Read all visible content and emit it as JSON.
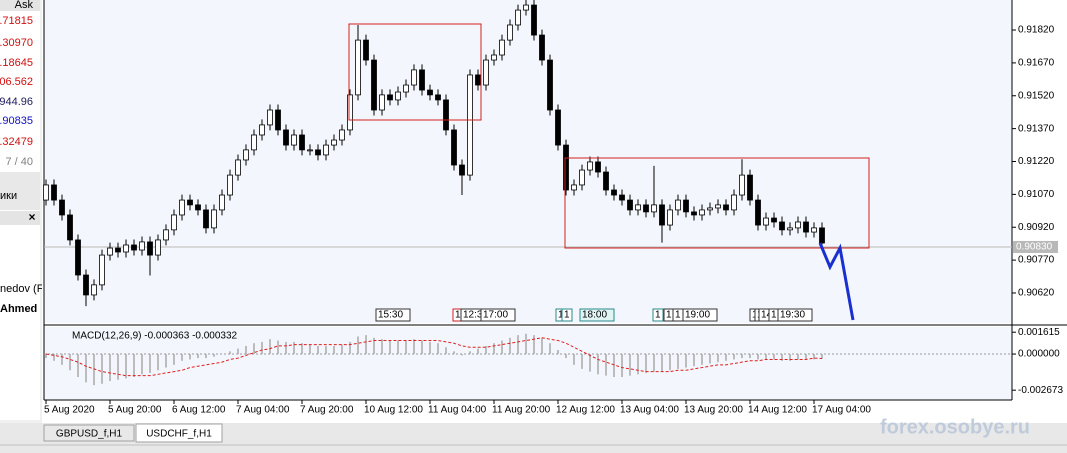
{
  "market_watch": {
    "header": "Ask",
    "prices": [
      ".71815",
      ".30970",
      ".18645",
      "06.562",
      "944.96",
      ".90835",
      ".32479"
    ],
    "counter": "7 / 40",
    "tab": "ики"
  },
  "navigator": {
    "items": [
      "nedov (F",
      "Ahmed"
    ]
  },
  "chart_data": [
    {
      "type": "candlestick",
      "categories": [
        "5 Aug 2020",
        null,
        null,
        null,
        null,
        null,
        null,
        null,
        "5 Aug 20:00",
        null,
        null,
        null,
        null,
        null,
        null,
        null,
        "6 Aug 12:00",
        null,
        null,
        null,
        null,
        null,
        null,
        null,
        "7 Aug 04:00",
        null,
        null,
        null,
        null,
        null,
        null,
        null,
        "7 Aug 20:00",
        null,
        null,
        null,
        null,
        null,
        null,
        null,
        "10 Aug 12:00",
        null,
        null,
        null,
        null,
        null,
        null,
        null,
        "11 Aug 04:00",
        null,
        null,
        null,
        null,
        null,
        null,
        null,
        "11 Aug 20:00",
        null,
        null,
        null,
        null,
        null,
        null,
        null,
        "12 Aug 12:00",
        null,
        null,
        null,
        null,
        null,
        null,
        null,
        "13 Aug 04:00",
        null,
        null,
        null,
        null,
        null,
        null,
        null,
        "13 Aug 20:00",
        null,
        null,
        null,
        null,
        null,
        null,
        null,
        "14 Aug 12:00",
        null,
        null,
        null,
        null,
        null,
        null,
        null,
        "17 Aug 04:00",
        null
      ],
      "open": [
        0.91044,
        0.91113,
        0.91044,
        0.90976,
        0.90862,
        0.90702,
        0.90611,
        0.90657,
        0.90793,
        0.90825,
        0.90807,
        0.90839,
        0.90816,
        0.90853,
        0.90793,
        0.90862,
        0.90908,
        0.90976,
        0.91044,
        0.91022,
        0.90999,
        0.90917,
        0.90999,
        0.91067,
        0.91158,
        0.91227,
        0.91273,
        0.91341,
        0.91387,
        0.91455,
        0.91364,
        0.91295,
        0.91341,
        0.91273,
        0.91273,
        0.9125,
        0.91295,
        0.91318,
        0.91364,
        0.91524,
        0.91774,
        0.91683,
        0.91455,
        0.91524,
        0.91501,
        0.91537,
        0.91569,
        0.91638,
        0.91546,
        0.91524,
        0.91501,
        0.91364,
        0.91204,
        0.91158,
        0.91615,
        0.91569,
        0.91683,
        0.91706,
        0.91774,
        0.91843,
        0.91911,
        0.91934,
        0.91797,
        0.91683,
        0.91455,
        0.91295,
        0.9109,
        0.91113,
        0.91181,
        0.91218,
        0.91172,
        0.9109,
        0.91067,
        0.91044,
        0.90999,
        0.91022,
        0.9099,
        0.91022,
        0.9093,
        0.90999,
        0.91044,
        0.9099,
        0.90976,
        0.90999,
        0.91008,
        0.91022,
        0.90999,
        0.91067,
        0.91158,
        0.91044,
        0.9093,
        0.90962,
        0.90944,
        0.90908,
        0.90917,
        0.90944,
        0.90898,
        0.90917
      ],
      "high": [
        0.91138,
        0.91138,
        0.91069,
        0.91001,
        0.90887,
        0.90727,
        0.90682,
        0.90818,
        0.9085,
        0.9085,
        0.90864,
        0.90864,
        0.90878,
        0.90878,
        0.90887,
        0.90933,
        0.91001,
        0.91069,
        0.91069,
        0.91047,
        0.91024,
        0.91024,
        0.91092,
        0.91183,
        0.91252,
        0.91298,
        0.91366,
        0.91412,
        0.9148,
        0.9148,
        0.91389,
        0.91366,
        0.91366,
        0.91298,
        0.91298,
        0.9132,
        0.91343,
        0.91389,
        0.91549,
        0.91843,
        0.91799,
        0.91708,
        0.91549,
        0.91549,
        0.91562,
        0.91594,
        0.91663,
        0.91663,
        0.91571,
        0.91549,
        0.91526,
        0.91389,
        0.91229,
        0.9164,
        0.9164,
        0.91708,
        0.91731,
        0.91799,
        0.91868,
        0.91936,
        0.91957,
        0.91957,
        0.91822,
        0.91708,
        0.9148,
        0.9132,
        0.91138,
        0.91206,
        0.91243,
        0.91243,
        0.91197,
        0.91115,
        0.91092,
        0.91069,
        0.91047,
        0.91047,
        0.912,
        0.91047,
        0.91024,
        0.91069,
        0.91069,
        0.91015,
        0.91024,
        0.91033,
        0.91047,
        0.91047,
        0.91092,
        0.9123,
        0.91183,
        0.91069,
        0.90987,
        0.90987,
        0.90969,
        0.90942,
        0.90969,
        0.90969,
        0.90942,
        0.90942
      ],
      "low": [
        0.91019,
        0.91019,
        0.90951,
        0.90837,
        0.90677,
        0.9056,
        0.90586,
        0.90632,
        0.90768,
        0.90782,
        0.90782,
        0.90791,
        0.90791,
        0.907,
        0.90768,
        0.90837,
        0.90883,
        0.90951,
        0.90997,
        0.90974,
        0.90892,
        0.90892,
        0.90974,
        0.91042,
        0.91133,
        0.91202,
        0.91248,
        0.91316,
        0.91362,
        0.91339,
        0.9127,
        0.9127,
        0.91248,
        0.91248,
        0.91225,
        0.91225,
        0.9127,
        0.91293,
        0.91339,
        0.91499,
        0.91658,
        0.9143,
        0.9143,
        0.91476,
        0.91476,
        0.91512,
        0.91544,
        0.91521,
        0.91499,
        0.91476,
        0.91339,
        0.91179,
        0.91067,
        0.91133,
        0.91544,
        0.91544,
        0.91658,
        0.91681,
        0.91749,
        0.91818,
        0.91886,
        0.91772,
        0.91658,
        0.9143,
        0.9127,
        0.91065,
        0.91065,
        0.91088,
        0.91156,
        0.91147,
        0.91065,
        0.91042,
        0.91019,
        0.90974,
        0.90974,
        0.90965,
        0.90965,
        0.9085,
        0.90905,
        0.90974,
        0.90965,
        0.90951,
        0.90951,
        0.90974,
        0.90983,
        0.90974,
        0.90974,
        0.91042,
        0.91019,
        0.90905,
        0.90905,
        0.90919,
        0.90883,
        0.90883,
        0.90892,
        0.90873,
        0.90873,
        0.90823
      ],
      "close": [
        0.91113,
        0.91044,
        0.90976,
        0.90862,
        0.90702,
        0.90611,
        0.90657,
        0.90793,
        0.90825,
        0.90807,
        0.90839,
        0.90816,
        0.90853,
        0.90793,
        0.90862,
        0.90908,
        0.90976,
        0.91044,
        0.91022,
        0.90999,
        0.90917,
        0.90999,
        0.91067,
        0.91158,
        0.91227,
        0.91273,
        0.91341,
        0.91387,
        0.91455,
        0.91364,
        0.91295,
        0.91341,
        0.91273,
        0.91273,
        0.9125,
        0.91295,
        0.91318,
        0.91364,
        0.91524,
        0.91774,
        0.91683,
        0.91455,
        0.91524,
        0.91501,
        0.91537,
        0.91569,
        0.91638,
        0.91546,
        0.91524,
        0.91501,
        0.91364,
        0.91204,
        0.91158,
        0.91615,
        0.91569,
        0.91683,
        0.91706,
        0.91774,
        0.91843,
        0.91911,
        0.91934,
        0.91797,
        0.91683,
        0.91455,
        0.91295,
        0.9109,
        0.91113,
        0.91181,
        0.91218,
        0.91172,
        0.9109,
        0.91067,
        0.91044,
        0.90999,
        0.91022,
        0.9099,
        0.91022,
        0.9093,
        0.90999,
        0.91044,
        0.9099,
        0.90976,
        0.90999,
        0.91008,
        0.91022,
        0.90999,
        0.91067,
        0.91158,
        0.91044,
        0.9093,
        0.90962,
        0.90944,
        0.90908,
        0.90917,
        0.90944,
        0.90898,
        0.90917,
        0.90848
      ],
      "up_color": "#ffffff",
      "down_color": "#000000",
      "ylim": [
        0.90483,
        0.91957
      ],
      "yticks": [
        {
          "value": 0.9182,
          "label": "0.91820"
        },
        {
          "value": 0.9167,
          "label": "0.91670"
        },
        {
          "value": 0.9152,
          "label": "0.91520"
        },
        {
          "value": 0.9137,
          "label": "0.91370"
        },
        {
          "value": 0.9122,
          "label": "0.91220"
        },
        {
          "value": 0.9107,
          "label": "0.91070"
        },
        {
          "value": 0.9092,
          "label": "0.90920"
        },
        {
          "value": 0.9077,
          "label": "0.90770"
        },
        {
          "value": 0.9062,
          "label": "0.90620"
        }
      ],
      "current_price": {
        "value": 0.9083,
        "label": "0.90830"
      }
    },
    {
      "type": "macd",
      "title": "MACD(12,26,9) -0.000363 -0.000332",
      "histogram": [
        -0.0003,
        -0.0005,
        -0.0008,
        -0.0012,
        -0.0017,
        -0.0021,
        -0.0023,
        -0.0022,
        -0.002,
        -0.0019,
        -0.0018,
        -0.0017,
        -0.0015,
        -0.0014,
        -0.0012,
        -0.001,
        -0.0008,
        -0.0005,
        -0.0004,
        -0.0003,
        -0.0003,
        -0.0002,
        0,
        0.0002,
        0.0004,
        0.0006,
        0.0008,
        0.0009,
        0.0011,
        0.001,
        0.0009,
        0.0009,
        0.0008,
        0.0007,
        0.0006,
        0.0006,
        0.0006,
        0.0007,
        0.0009,
        0.0013,
        0.0014,
        0.0012,
        0.0011,
        0.001,
        0.001,
        0.001,
        0.0011,
        0.001,
        0.0009,
        0.0008,
        0.0005,
        0.0002,
        -0.0001,
        0.0002,
        0.0004,
        0.0006,
        0.0008,
        0.001,
        0.0012,
        0.0014,
        0.0015,
        0.0014,
        0.0012,
        0.0008,
        0.0003,
        -0.0003,
        -0.0008,
        -0.0011,
        -0.0013,
        -0.0015,
        -0.0016,
        -0.0017,
        -0.0017,
        -0.0016,
        -0.0015,
        -0.0014,
        -0.0013,
        -0.0013,
        -0.0012,
        -0.0011,
        -0.001,
        -0.0009,
        -0.0008,
        -0.0007,
        -0.0006,
        -0.0005,
        -0.0004,
        -0.0003,
        -0.0003,
        -0.0004,
        -0.0004,
        -0.0004,
        -0.0005,
        -0.0005,
        -0.0004,
        -0.0004,
        -0.0004,
        -0.000363
      ],
      "signal": [
        0,
        -0.0001,
        -0.0002,
        -0.0004,
        -0.0006,
        -0.0009,
        -0.0011,
        -0.0013,
        -0.0014,
        -0.0015,
        -0.0016,
        -0.0016,
        -0.0016,
        -0.0016,
        -0.0015,
        -0.0014,
        -0.0013,
        -0.0012,
        -0.001,
        -0.0009,
        -0.0008,
        -0.0007,
        -0.0006,
        -0.0004,
        -0.0003,
        -0.0001,
        0.0001,
        0.0003,
        0.0004,
        0.0006,
        0.0006,
        0.0007,
        0.0007,
        0.0007,
        0.0007,
        0.0007,
        0.0007,
        0.0007,
        0.0007,
        0.0008,
        0.0009,
        0.001,
        0.001,
        0.001,
        0.001,
        0.001,
        0.001,
        0.001,
        0.001,
        0.001,
        0.0009,
        0.0008,
        0.0006,
        0.0005,
        0.0005,
        0.0005,
        0.0006,
        0.0007,
        0.0008,
        0.0009,
        0.001,
        0.0011,
        0.0012,
        0.0011,
        0.001,
        0.0008,
        0.0005,
        0.0002,
        -0.0001,
        -0.0004,
        -0.0006,
        -0.0008,
        -0.001,
        -0.0011,
        -0.0012,
        -0.0013,
        -0.0013,
        -0.0013,
        -0.0013,
        -0.0012,
        -0.0012,
        -0.0011,
        -0.001,
        -0.0009,
        -0.0008,
        -0.0008,
        -0.0007,
        -0.0006,
        -0.0005,
        -0.0005,
        -0.0004,
        -0.0004,
        -0.0004,
        -0.0004,
        -0.0004,
        -0.0004,
        -0.0003,
        -0.000332
      ],
      "histogram_color": "#a9a9a9",
      "signal_color": "#e0201e",
      "ylim": [
        -0.0034,
        0.002
      ],
      "yticks": [
        {
          "value": 0.001615,
          "label": "0.001615"
        },
        {
          "value": 0,
          "label": "0.000000"
        },
        {
          "value": -0.002673,
          "label": "-0.002673"
        }
      ]
    }
  ],
  "event_markers": [
    "15:30",
    "1",
    "12:3",
    "17:00",
    "1",
    "1",
    "18:00",
    "1",
    "1",
    "1",
    "19:00",
    "1",
    "1",
    "14",
    "1",
    "19:30"
  ],
  "tabs": [
    "GBPUSD_f,H1",
    "USDCHF_f,H1"
  ],
  "watermark": "forex.osobye.ru"
}
